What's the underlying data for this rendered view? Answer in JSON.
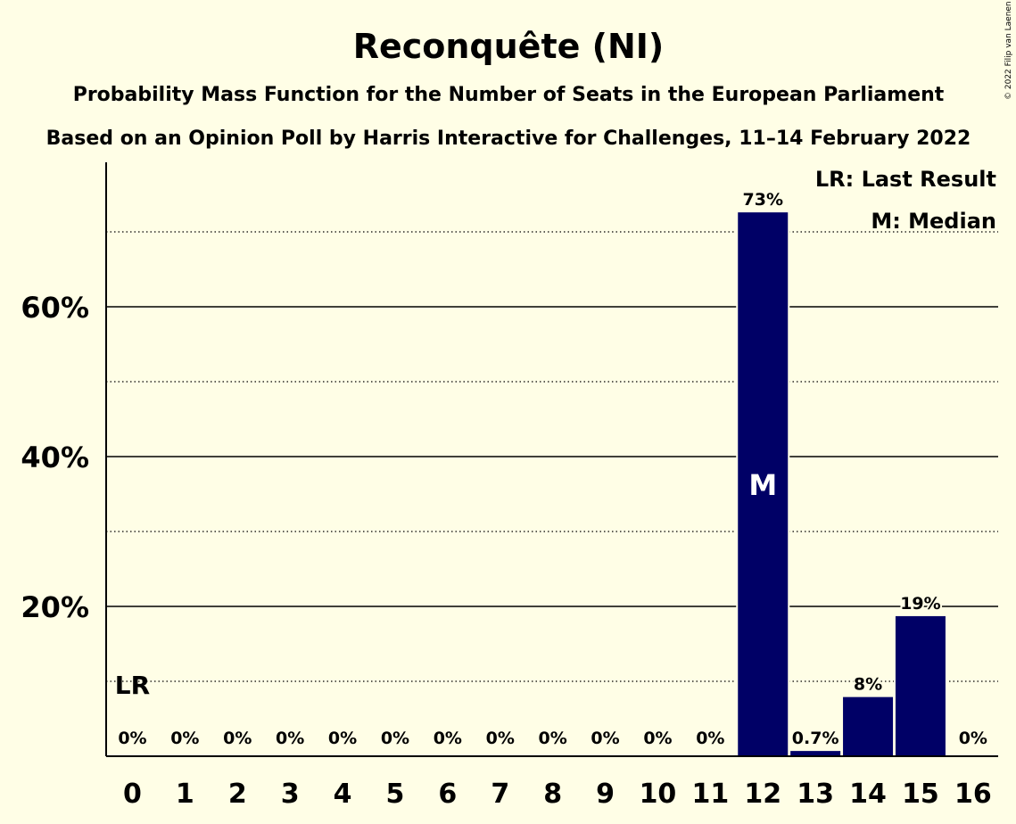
{
  "chart_data": {
    "type": "bar",
    "title": "Reconquête (NI)",
    "subtitle": "Probability Mass Function for the Number of Seats in the European Parliament",
    "subtitle2": "Based on an Opinion Poll by Harris Interactive for Challenges, 11–14 February 2022",
    "categories": [
      "0",
      "1",
      "2",
      "3",
      "4",
      "5",
      "6",
      "7",
      "8",
      "9",
      "10",
      "11",
      "12",
      "13",
      "14",
      "15",
      "16"
    ],
    "values": [
      0,
      0,
      0,
      0,
      0,
      0,
      0,
      0,
      0,
      0,
      0,
      0,
      72.6,
      0.7,
      7.9,
      18.7,
      0
    ],
    "value_labels": [
      "0%",
      "0%",
      "0%",
      "0%",
      "0%",
      "0%",
      "0%",
      "0%",
      "0%",
      "0%",
      "0%",
      "0%",
      "73%",
      "0.7%",
      "8%",
      "19%",
      "0%"
    ],
    "ylim": [
      0,
      79
    ],
    "yticks": [
      20,
      40,
      60
    ],
    "ytick_labels": [
      "20%",
      "40%",
      "60%"
    ],
    "minor_gridlines": [
      10,
      30,
      50,
      70
    ],
    "last_result_index": 0,
    "last_result_marker": "LR",
    "median_index": 12,
    "median_marker": "M",
    "legend": [
      "LR: Last Result",
      "M: Median"
    ],
    "legend_position": "top-right",
    "bar_color": "#000066",
    "background_color": "#FFFEE6"
  },
  "copyright": "© 2022 Filip van Laenen"
}
